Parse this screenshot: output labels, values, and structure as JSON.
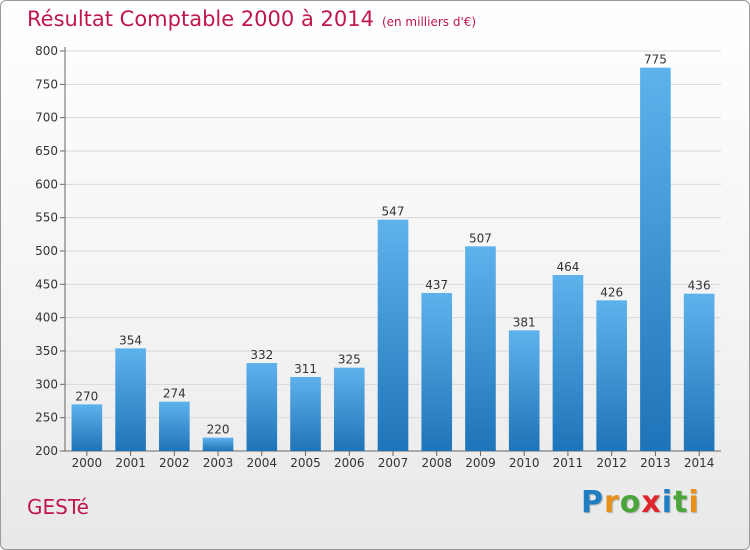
{
  "header": {
    "title": "Résultat Comptable 2000 à 2014",
    "subtitle": "(en milliers d'€)"
  },
  "footer": {
    "city": "GESTé",
    "logo_letters": [
      {
        "ch": "P",
        "color": "#1f7ec2"
      },
      {
        "ch": "r",
        "color": "#e8901a"
      },
      {
        "ch": "o",
        "color": "#4aa63b"
      },
      {
        "ch": "x",
        "color": "#e0262d"
      },
      {
        "ch": "i",
        "color": "#1f7ec2"
      },
      {
        "ch": "t",
        "color": "#4aa63b"
      },
      {
        "ch": "i",
        "color": "#e8901a"
      }
    ]
  },
  "colors": {
    "title": "#c0174b",
    "bar_light": "#5eb2ec",
    "bar_dark": "#1e74b8",
    "grid": "#d8d8d8"
  },
  "chart_data": {
    "type": "bar",
    "title": "Résultat Comptable 2000 à 2014",
    "subtitle": "(en milliers d'€)",
    "categories": [
      "2000",
      "2001",
      "2002",
      "2003",
      "2004",
      "2005",
      "2006",
      "2007",
      "2008",
      "2009",
      "2010",
      "2011",
      "2012",
      "2013",
      "2014"
    ],
    "values": [
      270,
      354,
      274,
      220,
      332,
      311,
      325,
      547,
      437,
      507,
      381,
      464,
      426,
      775,
      436
    ],
    "ylim": [
      200,
      800
    ],
    "yticks": [
      200,
      250,
      300,
      350,
      400,
      450,
      500,
      550,
      600,
      650,
      700,
      750,
      800
    ],
    "grid": true,
    "data_labels": true
  }
}
